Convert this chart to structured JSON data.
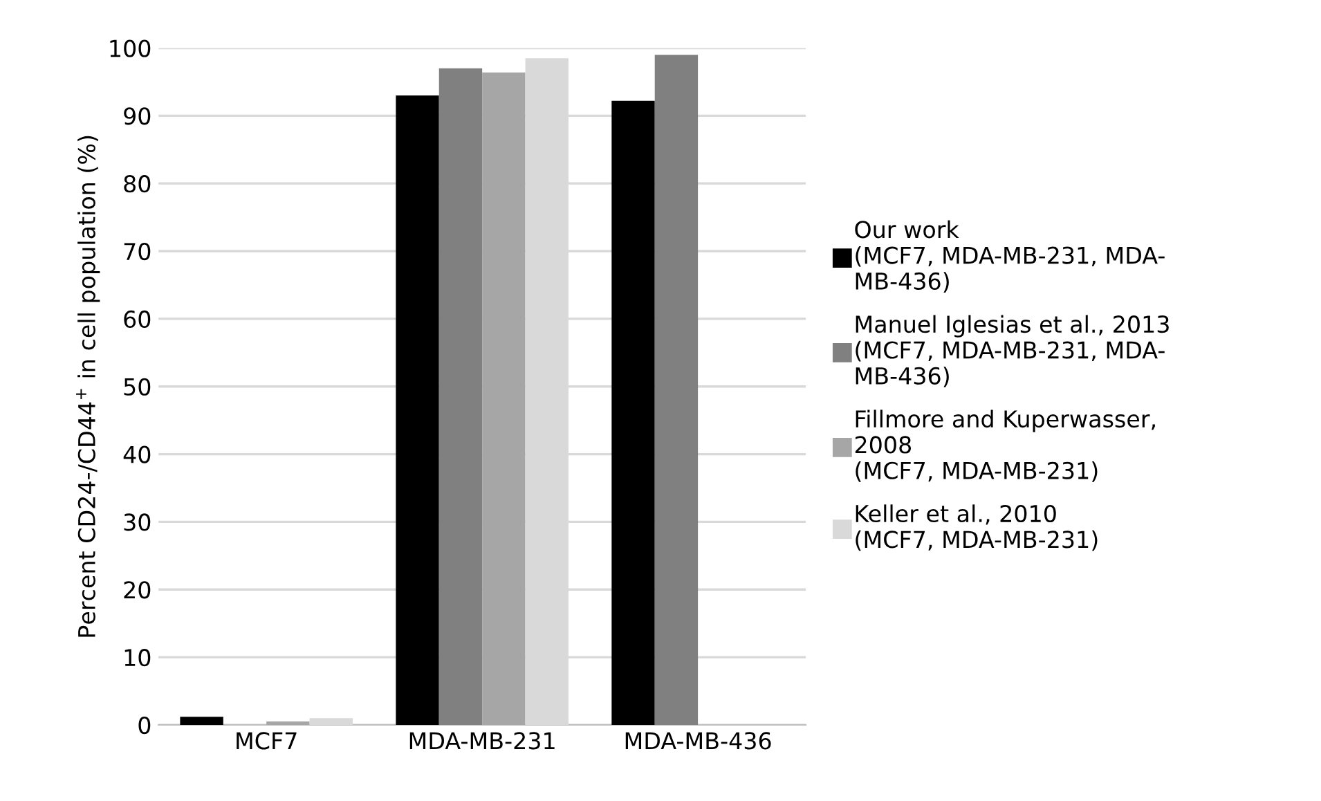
{
  "chart_data": {
    "type": "bar",
    "ylabel": "Percent CD24-/CD44$^{+}$ in cell population (%)",
    "categories": [
      "MCF7",
      "MDA-MB-231",
      "MDA-MB-436"
    ],
    "series": [
      {
        "name": "Our work\n(MCF7, MDA-MB-231, MDA-\nMB-436)",
        "color": "#000000",
        "values": [
          1.2,
          93.0,
          92.2
        ]
      },
      {
        "name": "Manuel Iglesias et al., 2013\n(MCF7, MDA-MB-231, MDA-\nMB-436)",
        "color": "#808080",
        "values": [
          null,
          97.0,
          99.0
        ]
      },
      {
        "name": "Fillmore and Kuperwasser,\n2008\n(MCF7, MDA-MB-231)",
        "color": "#a6a6a6",
        "values": [
          0.5,
          96.4,
          null
        ]
      },
      {
        "name": "Keller et al., 2010\n(MCF7, MDA-MB-231)",
        "color": "#d9d9d9",
        "values": [
          1.0,
          98.5,
          null
        ]
      }
    ],
    "ylim": [
      0,
      100
    ],
    "yticks": [
      0,
      10,
      20,
      30,
      40,
      50,
      60,
      70,
      80,
      90,
      100
    ],
    "grid": "y",
    "legend": "right"
  }
}
